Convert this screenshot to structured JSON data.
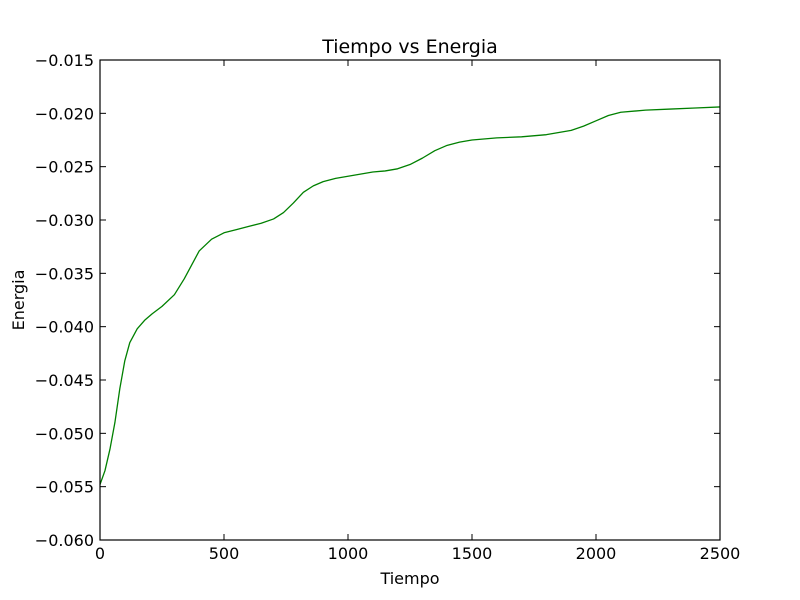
{
  "chart_data": {
    "type": "line",
    "title": "Tiempo vs Energia",
    "xlabel": "Tiempo",
    "ylabel": "Energia",
    "xlim": [
      0,
      2500
    ],
    "ylim": [
      -0.06,
      -0.015
    ],
    "grid": false,
    "x_ticks": [
      0,
      500,
      1000,
      1500,
      2000,
      2500
    ],
    "x_tick_labels": [
      "0",
      "500",
      "1000",
      "1500",
      "2000",
      "2500"
    ],
    "y_ticks": [
      -0.06,
      -0.055,
      -0.05,
      -0.045,
      -0.04,
      -0.035,
      -0.03,
      -0.025,
      -0.02,
      -0.015
    ],
    "y_tick_labels": [
      "−0.060",
      "−0.055",
      "−0.050",
      "−0.045",
      "−0.040",
      "−0.035",
      "−0.030",
      "−0.025",
      "−0.020",
      "−0.015"
    ],
    "series": [
      {
        "color": "#008000",
        "x": [
          0,
          20,
          40,
          60,
          80,
          100,
          120,
          150,
          180,
          210,
          250,
          300,
          340,
          370,
          400,
          450,
          500,
          550,
          600,
          650,
          700,
          740,
          780,
          820,
          860,
          900,
          950,
          1000,
          1050,
          1100,
          1150,
          1200,
          1250,
          1300,
          1350,
          1400,
          1450,
          1500,
          1600,
          1700,
          1800,
          1850,
          1900,
          1950,
          2000,
          2050,
          2100,
          2200,
          2300,
          2400,
          2500
        ],
        "y": [
          -0.0548,
          -0.0535,
          -0.0515,
          -0.049,
          -0.0458,
          -0.0432,
          -0.0415,
          -0.0402,
          -0.0394,
          -0.0388,
          -0.0381,
          -0.037,
          -0.0355,
          -0.0342,
          -0.0329,
          -0.0318,
          -0.0312,
          -0.0309,
          -0.0306,
          -0.0303,
          -0.0299,
          -0.0293,
          -0.0284,
          -0.0274,
          -0.0268,
          -0.0264,
          -0.0261,
          -0.0259,
          -0.0257,
          -0.0255,
          -0.0254,
          -0.0252,
          -0.0248,
          -0.0242,
          -0.0235,
          -0.023,
          -0.0227,
          -0.0225,
          -0.0223,
          -0.0222,
          -0.022,
          -0.0218,
          -0.0216,
          -0.0212,
          -0.0207,
          -0.0202,
          -0.0199,
          -0.0197,
          -0.0196,
          -0.0195,
          -0.0194
        ]
      }
    ]
  }
}
